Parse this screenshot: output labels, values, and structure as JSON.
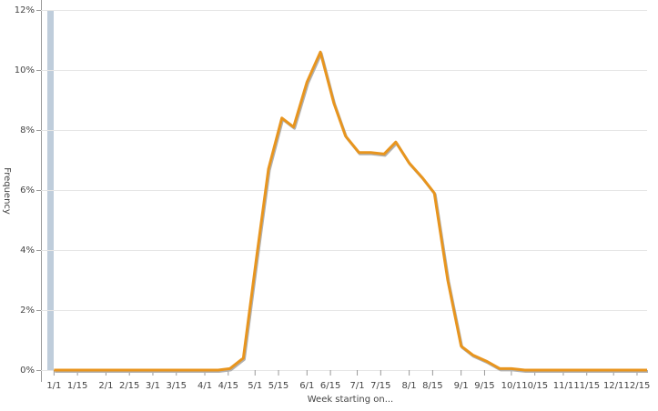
{
  "chart_data": {
    "type": "line",
    "y_label": "Frequency",
    "x_label": "Week starting on...",
    "x": [
      0,
      98,
      105,
      113,
      121,
      128,
      136,
      143,
      151,
      159,
      167,
      174,
      182,
      189,
      197,
      204,
      212,
      220,
      227,
      235,
      243,
      250,
      258,
      266,
      273,
      281,
      354
    ],
    "series": [
      {
        "color": "#e8951e",
        "values": [
          0,
          0,
          0.05,
          0.4,
          3.8,
          6.7,
          8.4,
          8.1,
          9.6,
          10.6,
          8.9,
          7.8,
          7.25,
          7.25,
          7.2,
          7.6,
          6.9,
          6.4,
          5.9,
          3.0,
          0.8,
          0.5,
          0.3,
          0.05,
          0.05,
          0,
          0
        ]
      }
    ],
    "xlim": [
      -4,
      354
    ],
    "xticks": [
      {
        "value": 0,
        "label": "1/1"
      },
      {
        "value": 14,
        "label": "1/15"
      },
      {
        "value": 31,
        "label": "2/1"
      },
      {
        "value": 45,
        "label": "2/15"
      },
      {
        "value": 59,
        "label": "3/1"
      },
      {
        "value": 73,
        "label": "3/15"
      },
      {
        "value": 90,
        "label": "4/1"
      },
      {
        "value": 104,
        "label": "4/15"
      },
      {
        "value": 120,
        "label": "5/1"
      },
      {
        "value": 134,
        "label": "5/15"
      },
      {
        "value": 151,
        "label": "6/1"
      },
      {
        "value": 165,
        "label": "6/15"
      },
      {
        "value": 181,
        "label": "7/1"
      },
      {
        "value": 195,
        "label": "7/15"
      },
      {
        "value": 212,
        "label": "8/1"
      },
      {
        "value": 226,
        "label": "8/15"
      },
      {
        "value": 243,
        "label": "9/1"
      },
      {
        "value": 257,
        "label": "9/15"
      },
      {
        "value": 273,
        "label": "10/1"
      },
      {
        "value": 287,
        "label": "10/15"
      },
      {
        "value": 304,
        "label": "11/1"
      },
      {
        "value": 318,
        "label": "11/15"
      },
      {
        "value": 334,
        "label": "12/1"
      },
      {
        "value": 348,
        "label": "12/15"
      }
    ],
    "ylim": [
      0,
      12
    ],
    "yticks": [
      {
        "value": 0,
        "label": "0%"
      },
      {
        "value": 2,
        "label": "2%"
      },
      {
        "value": 4,
        "label": "4%"
      },
      {
        "value": 6,
        "label": "6%"
      },
      {
        "value": 8,
        "label": "8%"
      },
      {
        "value": 10,
        "label": "10%"
      },
      {
        "value": 12,
        "label": "12%"
      }
    ],
    "grid": true
  }
}
